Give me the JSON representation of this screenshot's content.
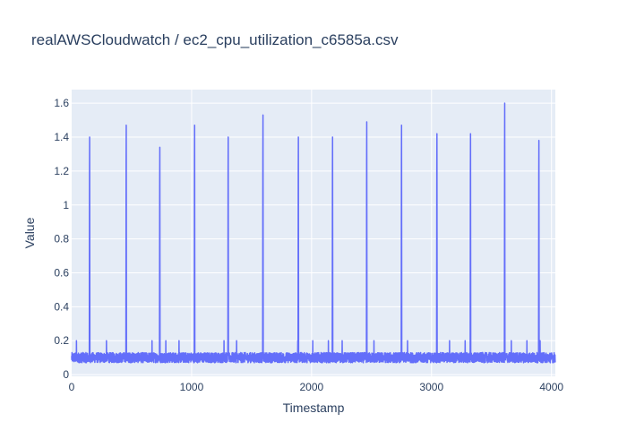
{
  "chart_data": {
    "type": "line",
    "title": "realAWSCloudwatch / ec2_cpu_utilization_c6585a.csv",
    "xlabel": "Timestamp",
    "ylabel": "Value",
    "xlim": [
      0,
      4032
    ],
    "ylim": [
      -0.01,
      1.68
    ],
    "x_ticks": [
      0,
      1000,
      2000,
      3000,
      4000
    ],
    "x_tick_labels": [
      "0",
      "1000",
      "2000",
      "3000",
      "4000"
    ],
    "y_ticks": [
      0,
      0.2,
      0.4,
      0.6,
      0.8,
      1,
      1.2,
      1.4,
      1.6
    ],
    "y_tick_labels": [
      "0",
      "0.2",
      "0.4",
      "0.6",
      "0.8",
      "1",
      "1.2",
      "1.4",
      "1.6"
    ],
    "grid": true,
    "line_color": "#636efa",
    "plot_background": "#e5ecf6",
    "series": [
      {
        "baseline_range": [
          0.07,
          0.13
        ],
        "n_points": 4032,
        "spikes": [
          {
            "x": 150,
            "y": 1.4
          },
          {
            "x": 455,
            "y": 1.47
          },
          {
            "x": 735,
            "y": 1.34
          },
          {
            "x": 1025,
            "y": 1.47
          },
          {
            "x": 1305,
            "y": 1.4
          },
          {
            "x": 1595,
            "y": 1.53
          },
          {
            "x": 1890,
            "y": 1.4
          },
          {
            "x": 2175,
            "y": 1.4
          },
          {
            "x": 2460,
            "y": 1.49
          },
          {
            "x": 2750,
            "y": 1.47
          },
          {
            "x": 3045,
            "y": 1.42
          },
          {
            "x": 3325,
            "y": 1.42
          },
          {
            "x": 3610,
            "y": 1.6
          },
          {
            "x": 3895,
            "y": 1.38
          }
        ],
        "minor_spikes": [
          {
            "x": 40,
            "y": 0.2
          },
          {
            "x": 290,
            "y": 0.2
          },
          {
            "x": 670,
            "y": 0.2
          },
          {
            "x": 785,
            "y": 0.2
          },
          {
            "x": 895,
            "y": 0.2
          },
          {
            "x": 1270,
            "y": 0.2
          },
          {
            "x": 1375,
            "y": 0.2
          },
          {
            "x": 1885,
            "y": 0.2
          },
          {
            "x": 2010,
            "y": 0.2
          },
          {
            "x": 2140,
            "y": 0.2
          },
          {
            "x": 2255,
            "y": 0.2
          },
          {
            "x": 2520,
            "y": 0.2
          },
          {
            "x": 2800,
            "y": 0.2
          },
          {
            "x": 3150,
            "y": 0.2
          },
          {
            "x": 3280,
            "y": 0.2
          },
          {
            "x": 3665,
            "y": 0.2
          },
          {
            "x": 3795,
            "y": 0.2
          },
          {
            "x": 3905,
            "y": 0.2
          }
        ]
      }
    ]
  }
}
